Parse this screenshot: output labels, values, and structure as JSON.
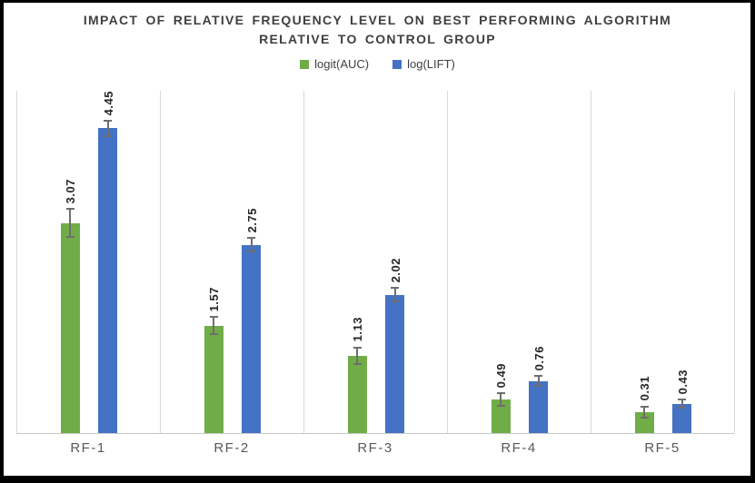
{
  "window": {
    "frame_color": "#000000",
    "chart_background": "#ffffff"
  },
  "chart_data": {
    "type": "bar",
    "title_lines": [
      "IMPACT OF RELATIVE FREQUENCY LEVEL ON BEST PERFORMING ALGORITHM",
      "RELATIVE TO CONTROL GROUP"
    ],
    "categories": [
      "RF-1",
      "RF-2",
      "RF-3",
      "RF-4",
      "RF-5"
    ],
    "series": [
      {
        "name": "logit(AUC)",
        "color": "#70AD47",
        "values": [
          3.07,
          1.57,
          1.13,
          0.49,
          0.31
        ],
        "errors": [
          0.2,
          0.13,
          0.12,
          0.09,
          0.08
        ]
      },
      {
        "name": "log(LIFT)",
        "color": "#4472C4",
        "values": [
          4.45,
          2.75,
          2.02,
          0.76,
          0.43
        ],
        "errors": [
          0.11,
          0.1,
          0.1,
          0.07,
          0.06
        ]
      }
    ],
    "ylim": [
      0,
      5
    ],
    "xlabel": "",
    "ylabel": "",
    "legend_position": "top",
    "grid": "vertical-category-boundaries",
    "data_labels": {
      "rotated": true,
      "format": "0.00"
    },
    "colors": {
      "gridline": "#d9d9d9",
      "axis_line": "#c8c8c8",
      "error_bar": "#6e6e6e",
      "title_text": "#3f3f3f",
      "category_label_text": "#595959",
      "value_label_text": "#262626"
    }
  }
}
